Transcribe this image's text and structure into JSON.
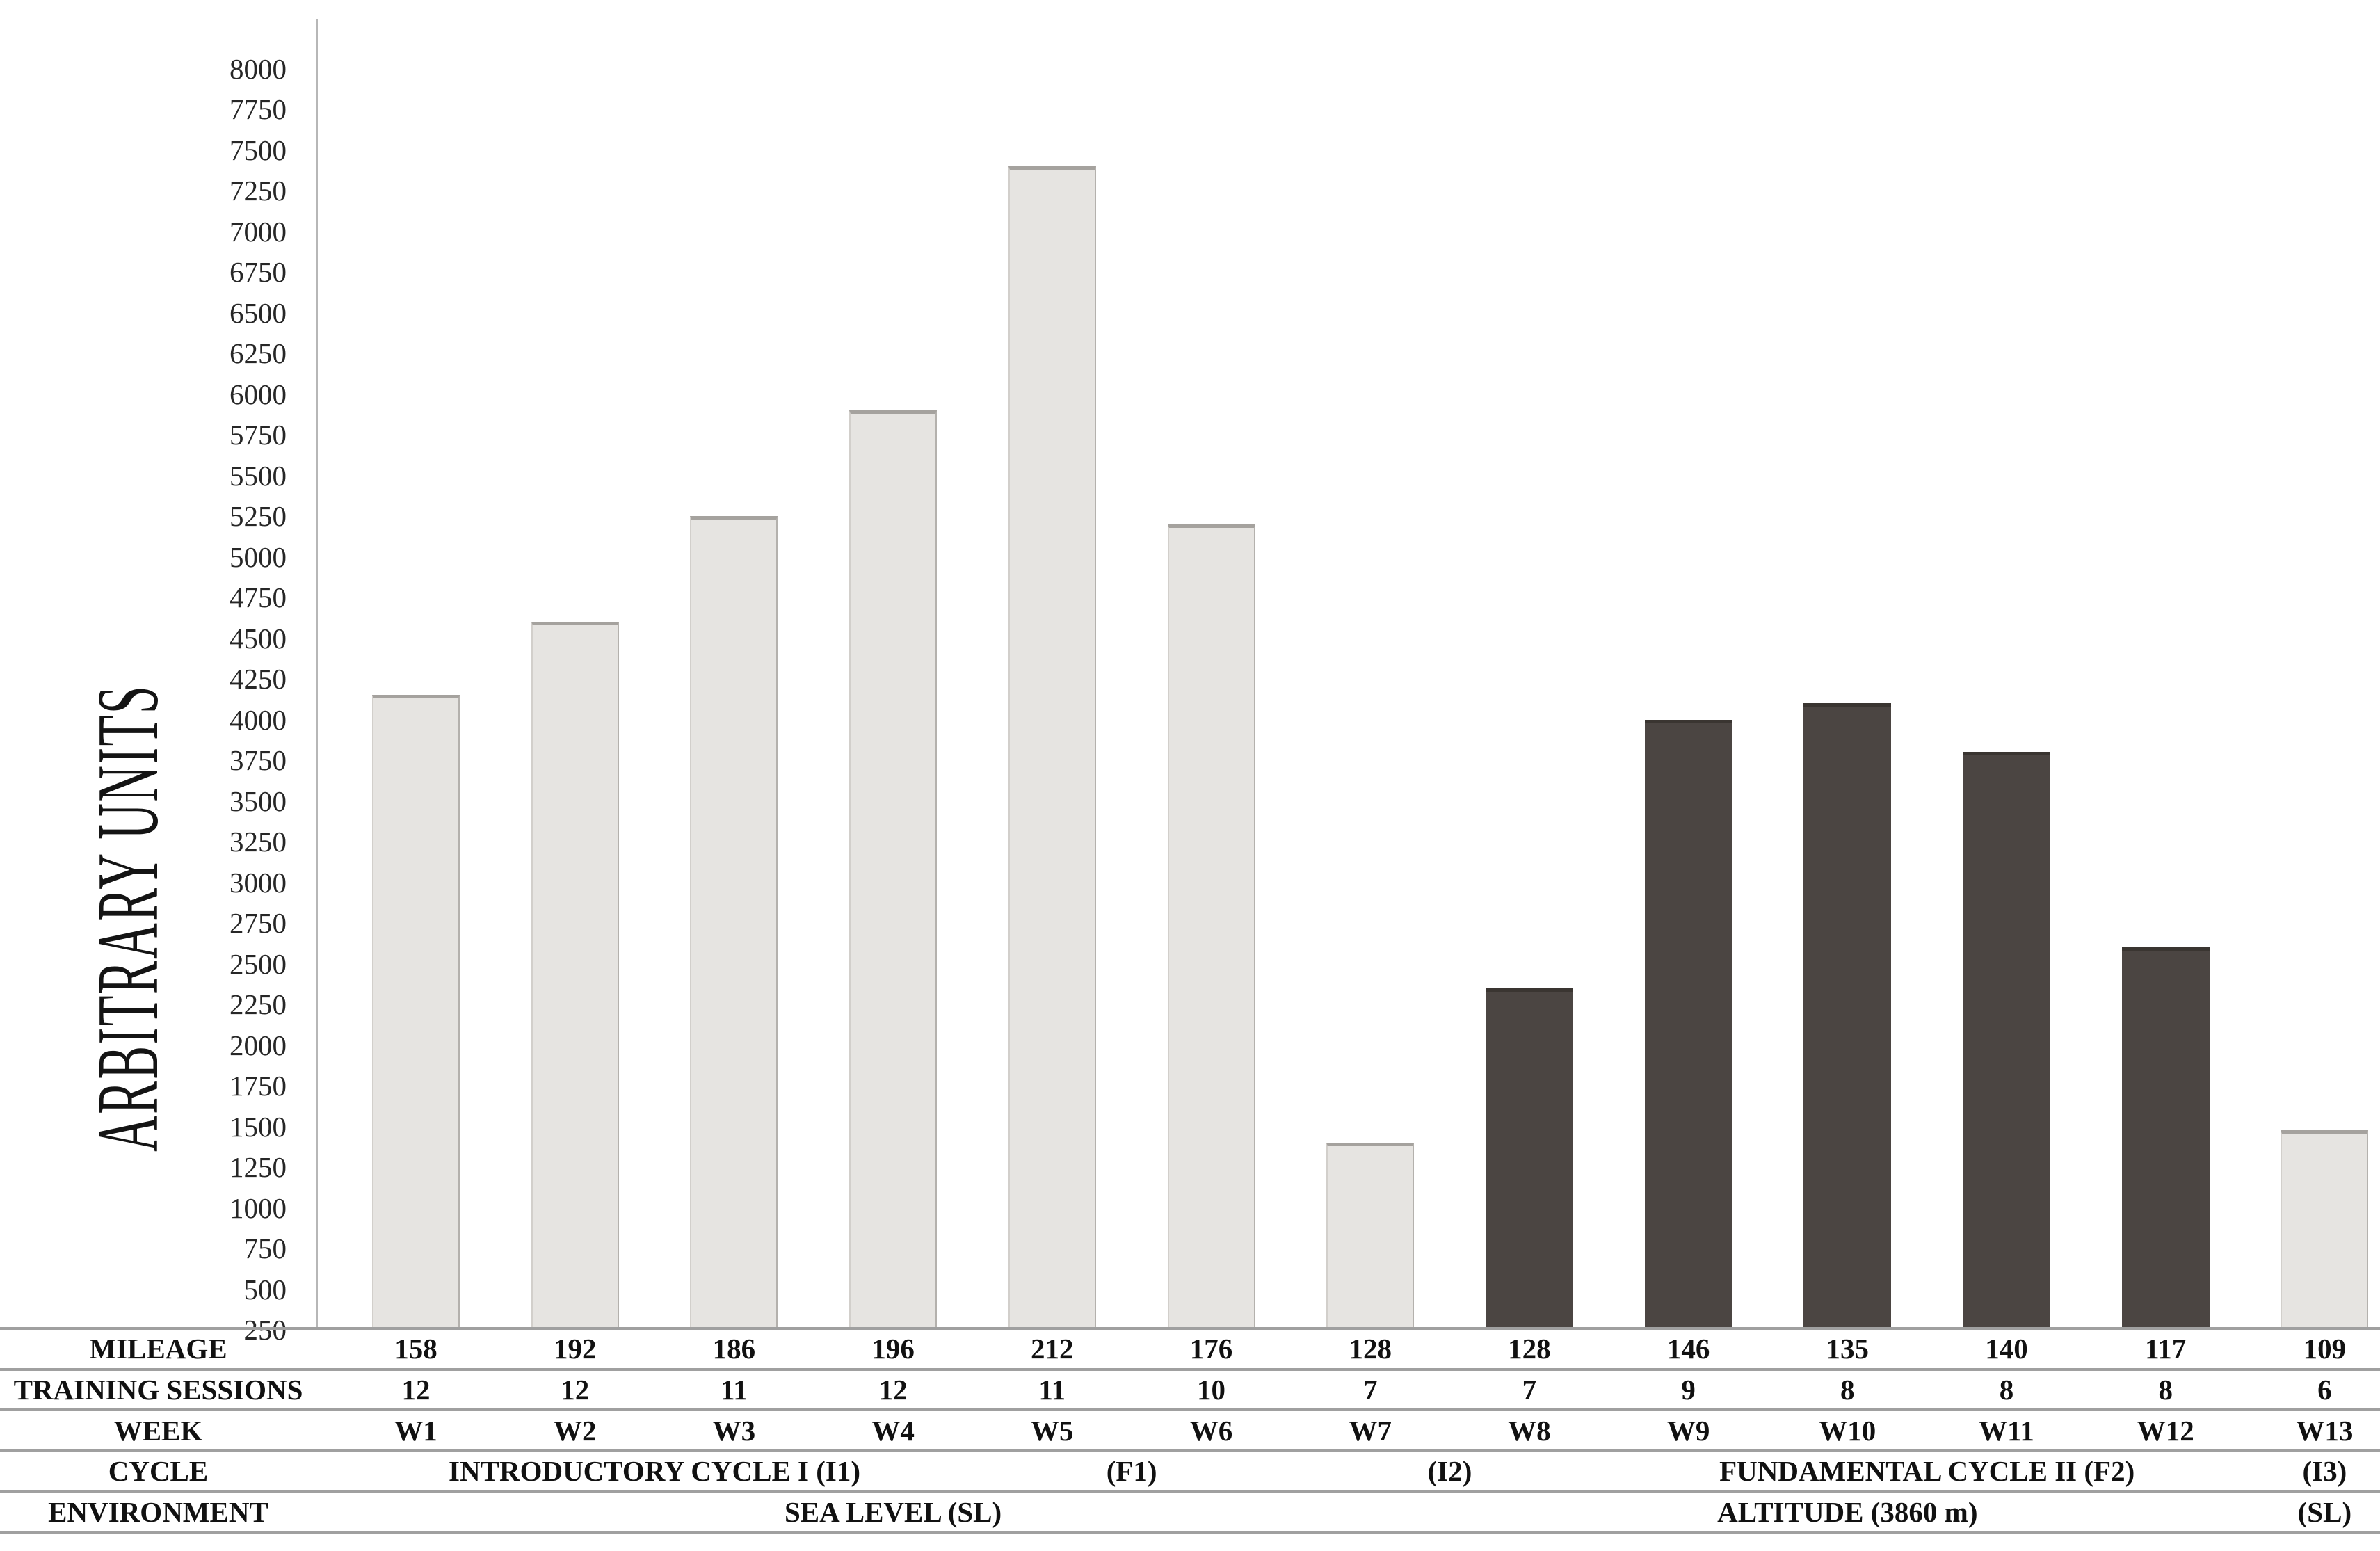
{
  "y_axis": {
    "title": "ARBITRARY UNITS",
    "tick_min": 250,
    "tick_max": 8000,
    "tick_step": 250
  },
  "table": {
    "row_labels": [
      "MILEAGE",
      "TRAINING SESSIONS",
      "WEEK",
      "CYCLE",
      "ENVIRONMENT"
    ]
  },
  "chart_data": {
    "type": "bar",
    "title": "",
    "xlabel": "",
    "ylabel": "ARBITRARY UNITS",
    "ylim": [
      250,
      8000
    ],
    "tick_step": 250,
    "grid": false,
    "legend": "none",
    "categories": [
      "W1",
      "W2",
      "W3",
      "W4",
      "W5",
      "W6",
      "W7",
      "W8",
      "W9",
      "W10",
      "W11",
      "W12",
      "W13"
    ],
    "values": [
      4150,
      4600,
      5250,
      5900,
      7400,
      5200,
      1400,
      2350,
      4000,
      4100,
      3800,
      2600,
      1475
    ],
    "bar_colors": [
      "light",
      "light",
      "light",
      "light",
      "light",
      "light",
      "light",
      "dark",
      "dark",
      "dark",
      "dark",
      "dark",
      "light"
    ],
    "palette": {
      "light": "#e6e4e1",
      "dark": "#4b4542"
    },
    "mileage": [
      158,
      192,
      186,
      196,
      212,
      176,
      128,
      128,
      146,
      135,
      140,
      117,
      109
    ],
    "training_sessions": [
      12,
      12,
      11,
      12,
      11,
      10,
      7,
      7,
      9,
      8,
      8,
      8,
      6
    ],
    "cycle_spans": [
      {
        "label": "INTRODUCTORY CYCLE I (I1)",
        "from": 1,
        "to": 4
      },
      {
        "label": "(F1)",
        "from": 5,
        "to": 6
      },
      {
        "label": "(I2)",
        "from": 7,
        "to": 8
      },
      {
        "label": "FUNDAMENTAL CYCLE II (F2)",
        "from": 9,
        "to": 12
      },
      {
        "label": "(I3)",
        "from": 13,
        "to": 13
      }
    ],
    "environment_spans": [
      {
        "label": "SEA LEVEL (SL)",
        "from": 1,
        "to": 7
      },
      {
        "label": "ALTITUDE (3860 m)",
        "from": 8,
        "to": 12
      },
      {
        "label": "(SL)",
        "from": 13,
        "to": 13
      }
    ]
  }
}
